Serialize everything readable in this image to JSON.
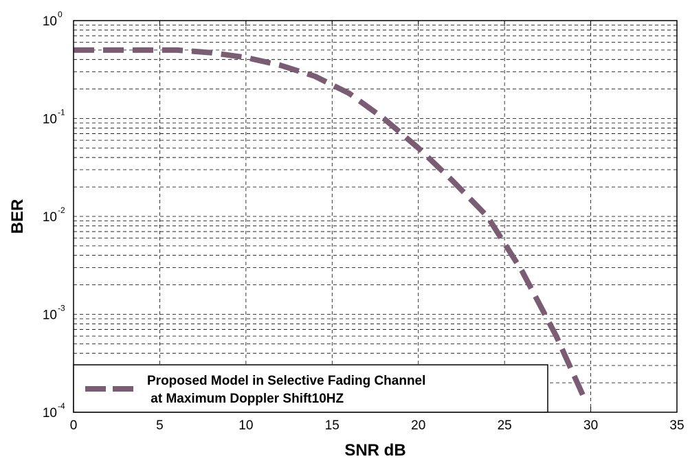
{
  "chart_data": {
    "type": "line",
    "xlabel": "SNR dB",
    "ylabel": "BER",
    "xlim": [
      0,
      35
    ],
    "ylim": [
      0.0001,
      1
    ],
    "yscale": "log",
    "grid": true,
    "xticks": [
      0,
      5,
      10,
      15,
      20,
      25,
      30,
      35
    ],
    "xtick_labels": [
      "0",
      "5",
      "10",
      "15",
      "20",
      "25",
      "30",
      "35"
    ],
    "yticks": [
      1,
      0.1,
      0.01,
      0.001,
      0.0001
    ],
    "ytick_labels": [
      {
        "base": "10",
        "exp": "0"
      },
      {
        "base": "10",
        "exp": "-1"
      },
      {
        "base": "10",
        "exp": "-2"
      },
      {
        "base": "10",
        "exp": "-3"
      },
      {
        "base": "10",
        "exp": "-4"
      }
    ],
    "legend": {
      "placement": "bottom-left",
      "lines": [
        "Proposed Model in Selective Fading Channel",
        " at Maximum Doppler Shift10HZ"
      ]
    },
    "series": [
      {
        "color": "#7a5c73",
        "style": "dashed",
        "x": [
          0,
          2,
          4,
          6,
          8,
          10,
          12,
          14,
          16,
          18,
          20,
          22,
          24,
          26,
          28,
          29.7
        ],
        "y": [
          0.5,
          0.5,
          0.5,
          0.5,
          0.47,
          0.42,
          0.35,
          0.27,
          0.18,
          0.1,
          0.05,
          0.023,
          0.01,
          0.0028,
          0.0006,
          0.00013
        ]
      }
    ]
  }
}
